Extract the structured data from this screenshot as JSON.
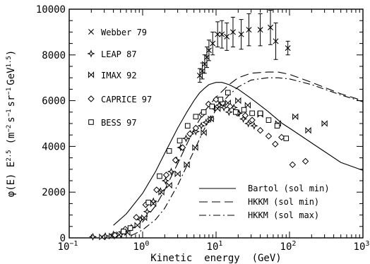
{
  "chart_data": {
    "type": "scatter",
    "xlabel_parts": [
      "Kinetic",
      "energy",
      "(GeV)"
    ],
    "ylabel_parts": {
      "phi": "φ(E)",
      "e": "E",
      "e_sup": "2.5",
      "units": "(m",
      "m_sup": "−2",
      "s": "s",
      "s_sup": "−1",
      "sr": "sr",
      "sr_sup": "−1",
      "gev": "GeV",
      "gev_sup": "1.5",
      "close": ")"
    },
    "x_scale": "log",
    "xlim": [
      0.1,
      1000
    ],
    "ylim": [
      0,
      10000
    ],
    "x_ticks": [
      {
        "value": 0.1,
        "base": "10",
        "exp": "−1"
      },
      {
        "value": 1,
        "base": "10",
        "exp": "0"
      },
      {
        "value": 10,
        "base": "10",
        "exp": "1"
      },
      {
        "value": 100,
        "base": "10",
        "exp": "2"
      },
      {
        "value": 1000,
        "base": "10",
        "exp": "3"
      }
    ],
    "y_ticks": [
      0,
      2000,
      4000,
      6000,
      8000,
      10000
    ],
    "series": [
      {
        "name": "Webber 79",
        "marker": "x",
        "points": [
          [
            6.0,
            7100,
            300
          ],
          [
            6.5,
            7300,
            350
          ],
          [
            7.0,
            7600,
            400
          ],
          [
            7.5,
            7900,
            450
          ],
          [
            8.0,
            8200,
            450
          ],
          [
            9.0,
            8500,
            500
          ],
          [
            10.5,
            8900,
            550
          ],
          [
            12.0,
            8900,
            600
          ],
          [
            14.0,
            8800,
            600
          ],
          [
            17.0,
            9000,
            650
          ],
          [
            22.0,
            8900,
            650
          ],
          [
            28.0,
            9100,
            700
          ],
          [
            40.0,
            9100,
            700
          ],
          [
            55.0,
            9200,
            750
          ],
          [
            65.0,
            8600,
            800
          ],
          [
            95.0,
            8300,
            300
          ]
        ]
      },
      {
        "name": "LEAP 87",
        "marker": "star",
        "points": [
          [
            0.21,
            50,
            0
          ],
          [
            0.31,
            80,
            0
          ],
          [
            0.4,
            150,
            0
          ],
          [
            0.52,
            260,
            0
          ],
          [
            0.7,
            450,
            0
          ],
          [
            0.93,
            800,
            0
          ],
          [
            1.15,
            1150,
            0
          ],
          [
            1.4,
            1600,
            0
          ],
          [
            1.75,
            2050,
            0
          ],
          [
            2.05,
            2500,
            0
          ],
          [
            2.45,
            2900,
            0
          ],
          [
            2.9,
            3400,
            0
          ],
          [
            3.3,
            3950,
            0
          ],
          [
            3.9,
            4350,
            0
          ],
          [
            4.5,
            4550,
            0
          ],
          [
            5.3,
            4650,
            0
          ],
          [
            6.3,
            4900,
            0
          ],
          [
            7.3,
            5050,
            0
          ],
          [
            8.4,
            5200,
            0
          ],
          [
            9.6,
            5650,
            0
          ],
          [
            11.0,
            5800,
            0
          ],
          [
            12.8,
            5700,
            0
          ],
          [
            15.0,
            5500,
            0
          ],
          [
            17.5,
            5700,
            0
          ],
          [
            20.5,
            5450,
            0
          ],
          [
            23.5,
            5200,
            0
          ],
          [
            27.5,
            5000,
            0
          ],
          [
            33.0,
            4900,
            0
          ]
        ]
      },
      {
        "name": "IMAX 92",
        "marker": "bowtie",
        "points": [
          [
            0.28,
            40,
            0
          ],
          [
            0.38,
            80,
            0
          ],
          [
            0.48,
            140,
            0
          ],
          [
            0.62,
            230,
            0
          ],
          [
            0.85,
            550,
            0
          ],
          [
            1.05,
            880,
            0
          ],
          [
            1.4,
            1500,
            0
          ],
          [
            1.8,
            2000,
            0
          ],
          [
            2.3,
            2300,
            0
          ],
          [
            3.0,
            2800,
            0
          ],
          [
            4.0,
            3200,
            0
          ],
          [
            5.2,
            3950,
            0
          ],
          [
            6.8,
            4600,
            0
          ],
          [
            8.5,
            5200,
            0
          ],
          [
            10.5,
            5650,
            0
          ],
          [
            14.5,
            5900,
            0
          ],
          [
            20.0,
            6000,
            0
          ],
          [
            27.0,
            5800,
            0
          ],
          [
            40.0,
            5400,
            0
          ],
          [
            70.0,
            5000,
            0
          ],
          [
            120.0,
            5300,
            0
          ],
          [
            180.0,
            4700,
            0
          ],
          [
            300.0,
            5000,
            0
          ]
        ]
      },
      {
        "name": "CAPRICE 97",
        "marker": "diamond",
        "points": [
          [
            0.42,
            120,
            0
          ],
          [
            0.58,
            380,
            0
          ],
          [
            0.82,
            900,
            0
          ],
          [
            1.1,
            1450,
            0
          ],
          [
            1.55,
            2100,
            0
          ],
          [
            2.1,
            2750,
            0
          ],
          [
            2.8,
            3400,
            0
          ],
          [
            3.5,
            3950,
            0
          ],
          [
            4.4,
            4550,
            0
          ],
          [
            5.3,
            4800,
            0
          ],
          [
            6.4,
            5400,
            0
          ],
          [
            7.9,
            5850,
            0
          ],
          [
            10.0,
            6050,
            0
          ],
          [
            12.3,
            5900,
            0
          ],
          [
            15.5,
            5750,
            0
          ],
          [
            19.5,
            5450,
            0
          ],
          [
            25.0,
            5350,
            0
          ],
          [
            31.0,
            5150,
            0
          ],
          [
            40.0,
            4700,
            0
          ],
          [
            52.0,
            4450,
            0
          ],
          [
            64.0,
            4100,
            0
          ],
          [
            78.0,
            4400,
            0
          ],
          [
            110.0,
            3200,
            0
          ],
          [
            165.0,
            3350,
            0
          ]
        ]
      },
      {
        "name": "BESS 97",
        "marker": "square",
        "points": [
          [
            0.55,
            280,
            0
          ],
          [
            0.68,
            430,
            0
          ],
          [
            1.2,
            1550,
            0
          ],
          [
            1.7,
            2700,
            0
          ],
          [
            2.3,
            3800,
            0
          ],
          [
            3.2,
            4250,
            0
          ],
          [
            4.1,
            4900,
            0
          ],
          [
            5.3,
            5300,
            0
          ],
          [
            6.8,
            5500,
            0
          ],
          [
            8.8,
            5750,
            0
          ],
          [
            11.5,
            6050,
            0
          ],
          [
            14.5,
            6350,
            0
          ],
          [
            18.5,
            5500,
            0
          ],
          [
            24.0,
            5600,
            0
          ],
          [
            31.0,
            5450,
            0
          ],
          [
            40.0,
            5450,
            0
          ],
          [
            52.0,
            5150,
            0
          ],
          [
            68.0,
            4900,
            0
          ],
          [
            90.0,
            4350,
            0
          ]
        ]
      }
    ],
    "curves": [
      {
        "name": "Bartol (sol min)",
        "style": "solid",
        "points": [
          [
            0.4,
            550
          ],
          [
            0.6,
            1050
          ],
          [
            1.0,
            1950
          ],
          [
            1.5,
            2900
          ],
          [
            2.0,
            3700
          ],
          [
            3.0,
            4800
          ],
          [
            4.0,
            5500
          ],
          [
            5.0,
            6000
          ],
          [
            6.0,
            6350
          ],
          [
            7.0,
            6550
          ],
          [
            8.0,
            6700
          ],
          [
            10.0,
            6800
          ],
          [
            12.0,
            6800
          ],
          [
            15.0,
            6700
          ],
          [
            20.0,
            6500
          ],
          [
            30.0,
            6100
          ],
          [
            50.0,
            5550
          ],
          [
            80.0,
            5000
          ],
          [
            100.0,
            4800
          ],
          [
            200.0,
            4150
          ],
          [
            500.0,
            3300
          ],
          [
            1000.0,
            2950
          ]
        ]
      },
      {
        "name": "HKKM    (sol min)",
        "style": "dashed",
        "points": [
          [
            0.5,
            100
          ],
          [
            0.8,
            500
          ],
          [
            1.0,
            700
          ],
          [
            1.5,
            1400
          ],
          [
            2.0,
            2100
          ],
          [
            3.0,
            3250
          ],
          [
            4.0,
            4100
          ],
          [
            5.0,
            4750
          ],
          [
            7.0,
            5550
          ],
          [
            10.0,
            6150
          ],
          [
            15.0,
            6700
          ],
          [
            20.0,
            7000
          ],
          [
            30.0,
            7200
          ],
          [
            50.0,
            7250
          ],
          [
            70.0,
            7250
          ],
          [
            100.0,
            7150
          ],
          [
            200.0,
            6800
          ],
          [
            500.0,
            6300
          ],
          [
            1000.0,
            6000
          ]
        ]
      },
      {
        "name": "HKKM    (sol max)",
        "style": "dashdot",
        "points": [
          [
            0.7,
            100
          ],
          [
            1.0,
            350
          ],
          [
            1.5,
            800
          ],
          [
            2.0,
            1300
          ],
          [
            3.0,
            2300
          ],
          [
            4.0,
            3150
          ],
          [
            5.0,
            3800
          ],
          [
            7.0,
            4800
          ],
          [
            10.0,
            5600
          ],
          [
            15.0,
            6250
          ],
          [
            20.0,
            6600
          ],
          [
            30.0,
            6900
          ],
          [
            50.0,
            7000
          ],
          [
            70.0,
            7000
          ],
          [
            100.0,
            6950
          ],
          [
            200.0,
            6700
          ],
          [
            500.0,
            6250
          ],
          [
            1000.0,
            5950
          ]
        ]
      }
    ]
  }
}
